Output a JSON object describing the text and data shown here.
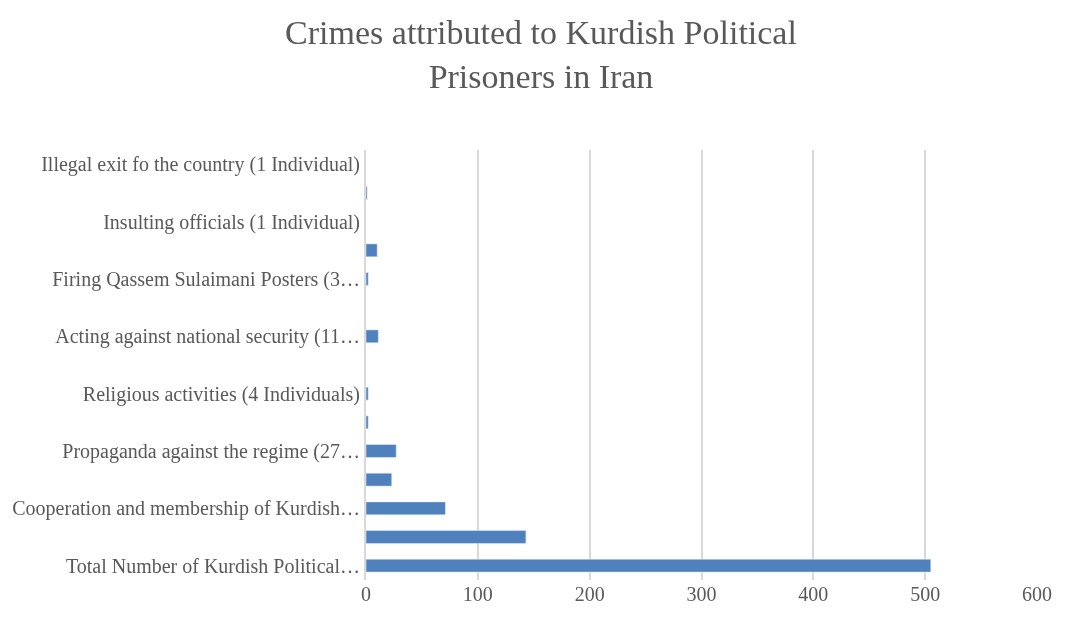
{
  "chart_data": {
    "type": "bar",
    "orientation": "horizontal",
    "title": "Crimes attributed to Kurdish Political Prisoners in Iran",
    "categories": [
      "Illegal exit fo the country (1 Individual)",
      null,
      "Insulting officials (1 Individual)",
      null,
      "Firing Qassem Sulaimani Posters (3…",
      null,
      "Acting against national security (11…",
      null,
      "Religious activities (4 Individuals)",
      null,
      "Propaganda against the regime (27…",
      null,
      "Cooperation and membership of Kurdish…",
      null,
      "Total Number of Kurdish Political…"
    ],
    "values": [
      null,
      1,
      null,
      10,
      2,
      null,
      11,
      null,
      2,
      2,
      27,
      23,
      71,
      143,
      505
    ],
    "color": "#4f81bd",
    "xlim": [
      0,
      600
    ],
    "xticks": [
      0,
      100,
      200,
      300,
      400,
      500,
      600
    ],
    "grid": "x"
  }
}
